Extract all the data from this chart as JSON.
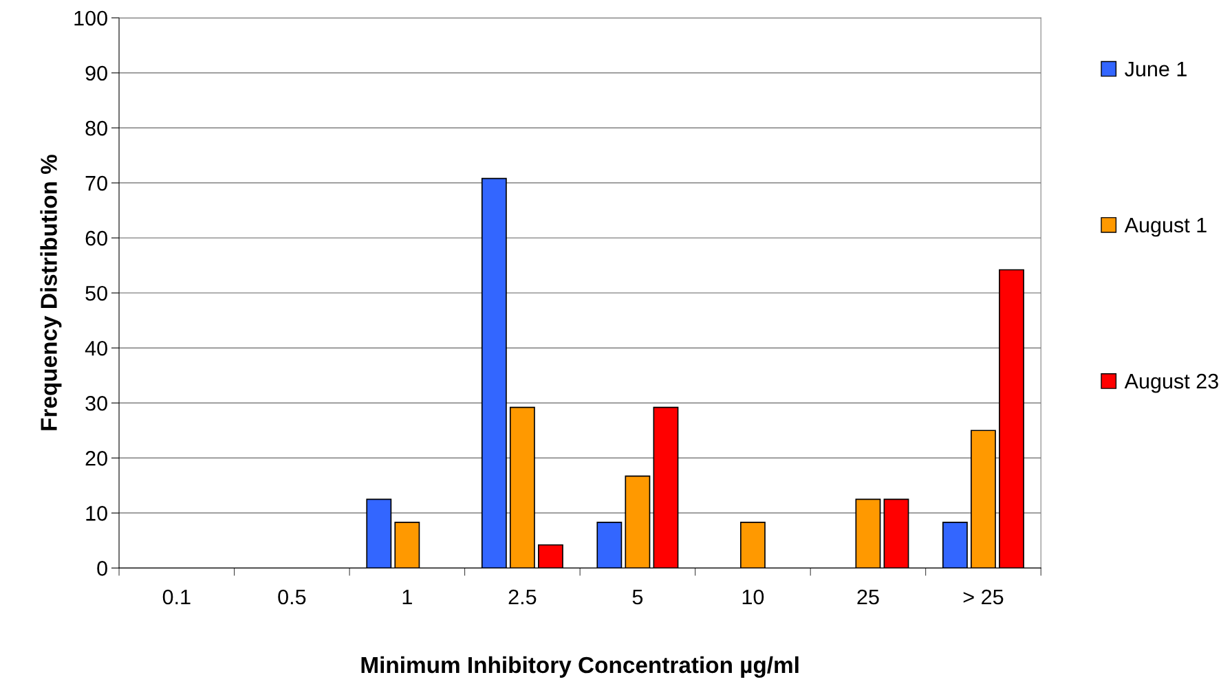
{
  "chart_data": {
    "type": "bar",
    "xlabel": "Minimum Inhibitory Concentration µg/ml",
    "ylabel": "Frequency Distribution %",
    "categories": [
      "0.1",
      "0.5",
      "1",
      "2.5",
      "5",
      "10",
      "25",
      "> 25"
    ],
    "series": [
      {
        "name": "June 1",
        "color": "#3366ff",
        "values": [
          null,
          null,
          12.5,
          70.8,
          8.3,
          null,
          null,
          8.3
        ]
      },
      {
        "name": "August 1",
        "color": "#ff9900",
        "values": [
          null,
          null,
          8.3,
          29.2,
          16.7,
          8.3,
          12.5,
          25
        ]
      },
      {
        "name": "August 23",
        "color": "#ff0000",
        "values": [
          null,
          null,
          null,
          4.2,
          29.2,
          null,
          12.5,
          54.2
        ]
      }
    ],
    "ylim": [
      0,
      100
    ],
    "yticks": [
      0,
      10,
      20,
      30,
      40,
      50,
      60,
      70,
      80,
      90,
      100
    ],
    "grid": "y",
    "legend": "right"
  }
}
